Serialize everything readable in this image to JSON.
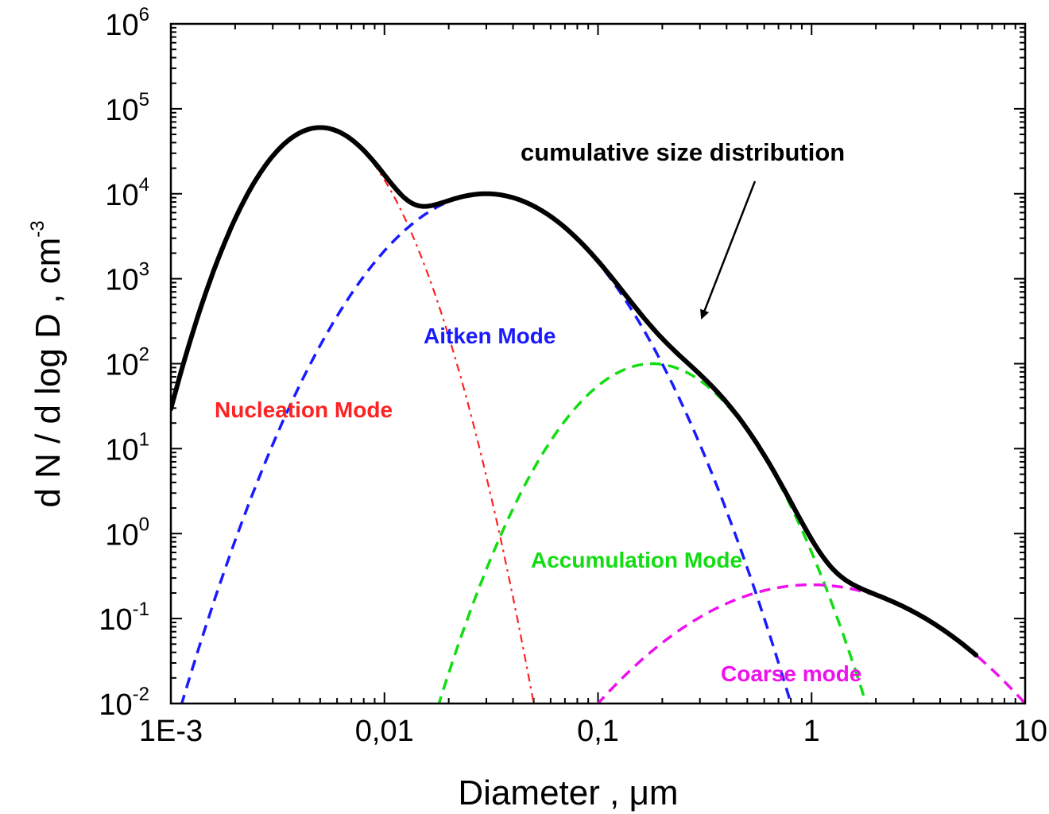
{
  "chart_data": {
    "type": "line",
    "title": "",
    "xlabel": "Diameter , μm",
    "ylabel_main": "d N / d log D  ,  cm",
    "ylabel_sup": "-3",
    "x_scale": "log",
    "y_scale": "log",
    "xlim": [
      0.001,
      10
    ],
    "ylim": [
      0.01,
      1000000
    ],
    "x_ticks": [
      {
        "value": 0.001,
        "label": "1E-3"
      },
      {
        "value": 0.01,
        "label": "0,01"
      },
      {
        "value": 0.1,
        "label": "0,1"
      },
      {
        "value": 1,
        "label": "1"
      },
      {
        "value": 10,
        "label": "10"
      }
    ],
    "y_ticks": [
      {
        "value": 0.01,
        "base": "10",
        "exp": "-2"
      },
      {
        "value": 0.1,
        "base": "10",
        "exp": "-1"
      },
      {
        "value": 1,
        "base": "10",
        "exp": "0"
      },
      {
        "value": 10,
        "base": "10",
        "exp": "1"
      },
      {
        "value": 100,
        "base": "10",
        "exp": "2"
      },
      {
        "value": 1000,
        "base": "10",
        "exp": "3"
      },
      {
        "value": 10000,
        "base": "10",
        "exp": "4"
      },
      {
        "value": 100000,
        "base": "10",
        "exp": "5"
      },
      {
        "value": 1000000,
        "base": "10",
        "exp": "6"
      }
    ],
    "grid": false,
    "series": [
      {
        "label": "Nucleation Mode",
        "color": "#ff2222",
        "style": "dash-dot",
        "peak_x": 0.005,
        "peak_y": 60000,
        "x_end": 0.05
      },
      {
        "label": "Aitken Mode",
        "color": "#1a1aff",
        "style": "dashed",
        "peak_x": 0.03,
        "peak_y": 10000,
        "x_end": 0.8
      },
      {
        "label": "Accumulation Mode",
        "color": "#11dd11",
        "style": "dashed",
        "peak_x": 0.18,
        "peak_y": 100,
        "x_end": 1.8
      },
      {
        "label": "Coarse mode",
        "color": "#ee11ee",
        "style": "dashed",
        "peak_x": 1.0,
        "peak_y": 0.25,
        "x_end": 10
      }
    ],
    "total": {
      "label": "cumulative size distribution",
      "color": "#000000",
      "style": "solid",
      "x_start": 0.001,
      "x_end": 6
    }
  }
}
